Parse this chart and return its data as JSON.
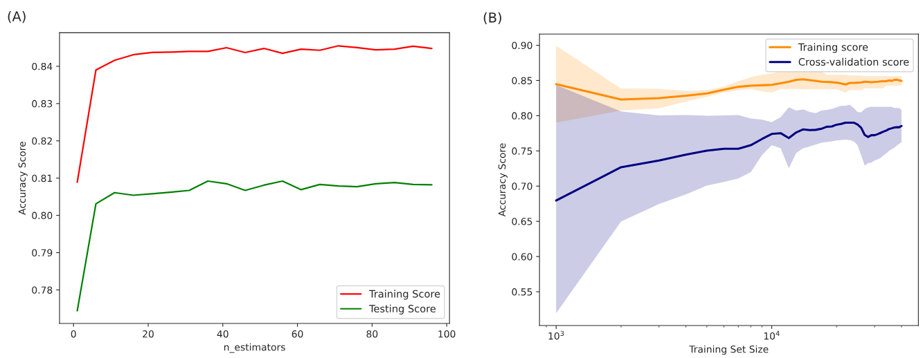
{
  "chart_data": [
    {
      "type": "line",
      "title": "(A)",
      "xlabel": "n_estimators",
      "ylabel": "Accuracy Score",
      "x": [
        1,
        6,
        11,
        16,
        21,
        26,
        31,
        36,
        41,
        46,
        51,
        56,
        61,
        66,
        71,
        76,
        81,
        86,
        91,
        96
      ],
      "series": [
        {
          "name": "Training Score",
          "color": "#ff0000",
          "values": [
            0.8089,
            0.839,
            0.8416,
            0.8431,
            0.8437,
            0.8438,
            0.844,
            0.844,
            0.845,
            0.8437,
            0.8448,
            0.8435,
            0.8446,
            0.8443,
            0.8455,
            0.845,
            0.8444,
            0.8446,
            0.8454,
            0.8448
          ]
        },
        {
          "name": "Testing Score",
          "color": "#008000",
          "values": [
            0.7744,
            0.8031,
            0.8061,
            0.8054,
            0.8058,
            0.8062,
            0.8067,
            0.8092,
            0.8085,
            0.8067,
            0.8081,
            0.8092,
            0.8069,
            0.8083,
            0.8079,
            0.8077,
            0.8085,
            0.8088,
            0.8083,
            0.8082
          ]
        }
      ],
      "xlim": [
        -3.75,
        100.75
      ],
      "ylim": [
        0.771,
        0.849
      ],
      "xticks": [
        0,
        20,
        40,
        60,
        80,
        100
      ],
      "yticks": [
        0.78,
        0.79,
        {
          "value": 0.8,
          "label": "0.80"
        },
        0.81,
        0.82,
        0.83,
        0.84
      ],
      "legend": "lower right",
      "grid": false,
      "line_style": "solid"
    },
    {
      "type": "line",
      "title": "(B)",
      "xlabel": "Training Set Size",
      "ylabel": "Accuracy Score",
      "log": "x",
      "x": [
        1000,
        2000,
        3000,
        4000,
        5000,
        6000,
        7000,
        8000,
        9000,
        10000,
        11000,
        12000,
        13000,
        14000,
        15000,
        16000,
        17000,
        18000,
        19000,
        20000,
        21000,
        22000,
        23000,
        24000,
        25000,
        26000,
        27000,
        28000,
        29000,
        30000,
        31000,
        32000,
        33000,
        34000,
        35000,
        36000,
        37000,
        38000,
        39000,
        40000
      ],
      "series": [
        {
          "name": "Training score",
          "color": "#ff8c00",
          "values": [
            0.8447,
            0.8229,
            0.825,
            0.8283,
            0.8316,
            0.837,
            0.841,
            0.8425,
            0.8432,
            0.8439,
            0.8461,
            0.8483,
            0.8509,
            0.8516,
            0.8505,
            0.8494,
            0.8483,
            0.848,
            0.8476,
            0.8469,
            0.8458,
            0.8443,
            0.8465,
            0.8465,
            0.8469,
            0.8472,
            0.8483,
            0.848,
            0.8476,
            0.848,
            0.8483,
            0.8487,
            0.849,
            0.849,
            0.8501,
            0.8494,
            0.8509,
            0.8512,
            0.8501,
            0.8494
          ],
          "lower": [
            0.7902,
            0.8072,
            0.8104,
            0.82,
            0.827,
            0.8327,
            0.8363,
            0.838,
            0.8345,
            0.8327,
            0.838,
            0.838,
            0.838,
            0.8374,
            0.8374,
            0.8374,
            0.8374,
            0.8374,
            0.8374,
            0.8374,
            0.835,
            0.8327,
            0.8363,
            0.8363,
            0.8363,
            0.8363,
            0.8388,
            0.8388,
            0.8388,
            0.8388,
            0.8388,
            0.8388,
            0.8388,
            0.8425,
            0.8425,
            0.8425,
            0.8425,
            0.8425,
            0.8425,
            0.8425
          ],
          "upper": [
            0.8992,
            0.8386,
            0.8381,
            0.8352,
            0.8363,
            0.8414,
            0.849,
            0.8545,
            0.8581,
            0.86,
            0.863,
            0.863,
            0.863,
            0.863,
            0.863,
            0.863,
            0.863,
            0.858,
            0.858,
            0.858,
            0.858,
            0.858,
            0.857,
            0.857,
            0.857,
            0.857,
            0.856,
            0.856,
            0.856,
            0.856,
            0.856,
            0.856,
            0.856,
            0.856,
            0.856,
            0.856,
            0.856,
            0.856,
            0.856,
            0.856
          ]
        },
        {
          "name": "Cross-validation score",
          "color": "#000080",
          "values": [
            0.6795,
            0.7268,
            0.7363,
            0.7446,
            0.7504,
            0.753,
            0.753,
            0.7581,
            0.7668,
            0.7741,
            0.7752,
            0.7683,
            0.7763,
            0.7806,
            0.7796,
            0.7799,
            0.7814,
            0.7843,
            0.7847,
            0.7872,
            0.7883,
            0.7901,
            0.7901,
            0.7901,
            0.7876,
            0.7829,
            0.7727,
            0.7698,
            0.7723,
            0.7723,
            0.7738,
            0.7756,
            0.7774,
            0.7789,
            0.7811,
            0.7821,
            0.7832,
            0.7836,
            0.7836,
            0.7854
          ],
          "lower": [
            0.5195,
            0.6497,
            0.6744,
            0.6882,
            0.7008,
            0.706,
            0.7108,
            0.72,
            0.7436,
            0.7581,
            0.7538,
            0.7254,
            0.7472,
            0.7538,
            0.7563,
            0.7589,
            0.7617,
            0.7625,
            0.7636,
            0.7647,
            0.7654,
            0.7661,
            0.7654,
            0.7636,
            0.7581,
            0.7436,
            0.729,
            0.7327,
            0.7334,
            0.7363,
            0.7381,
            0.74,
            0.7436,
            0.7465,
            0.75,
            0.7523,
            0.7545,
            0.7574,
            0.76,
            0.7625
          ],
          "upper": [
            0.8436,
            0.806,
            0.8003,
            0.801,
            0.8,
            0.8003,
            0.801,
            0.7959,
            0.7945,
            0.7908,
            0.798,
            0.812,
            0.8073,
            0.809,
            0.8054,
            0.8036,
            0.8073,
            0.8083,
            0.8098,
            0.812,
            0.8141,
            0.8141,
            0.8156,
            0.811,
            0.8054,
            0.8047,
            0.8098,
            0.812,
            0.8127,
            0.8127,
            0.8127,
            0.8127,
            0.8127,
            0.8127,
            0.8127,
            0.8127,
            0.811,
            0.811,
            0.811,
            0.8083
          ]
        }
      ],
      "xlim": [
        837,
        47900
      ],
      "ylim": [
        0.502,
        0.916
      ],
      "xticks": [
        {
          "value": 1000,
          "label": "10$^{3}$"
        },
        {
          "value": 10000,
          "label": "10$^{4}$"
        }
      ],
      "yticks": [
        0.55,
        {
          "value": 0.6,
          "label": "0.60"
        },
        0.65,
        {
          "value": 0.7,
          "label": "0.70"
        },
        0.75,
        {
          "value": 0.8,
          "label": "0.80"
        },
        0.85,
        {
          "value": 0.9,
          "label": "0.90"
        }
      ],
      "legend": "upper right",
      "grid": false,
      "line_style": "solid"
    }
  ]
}
